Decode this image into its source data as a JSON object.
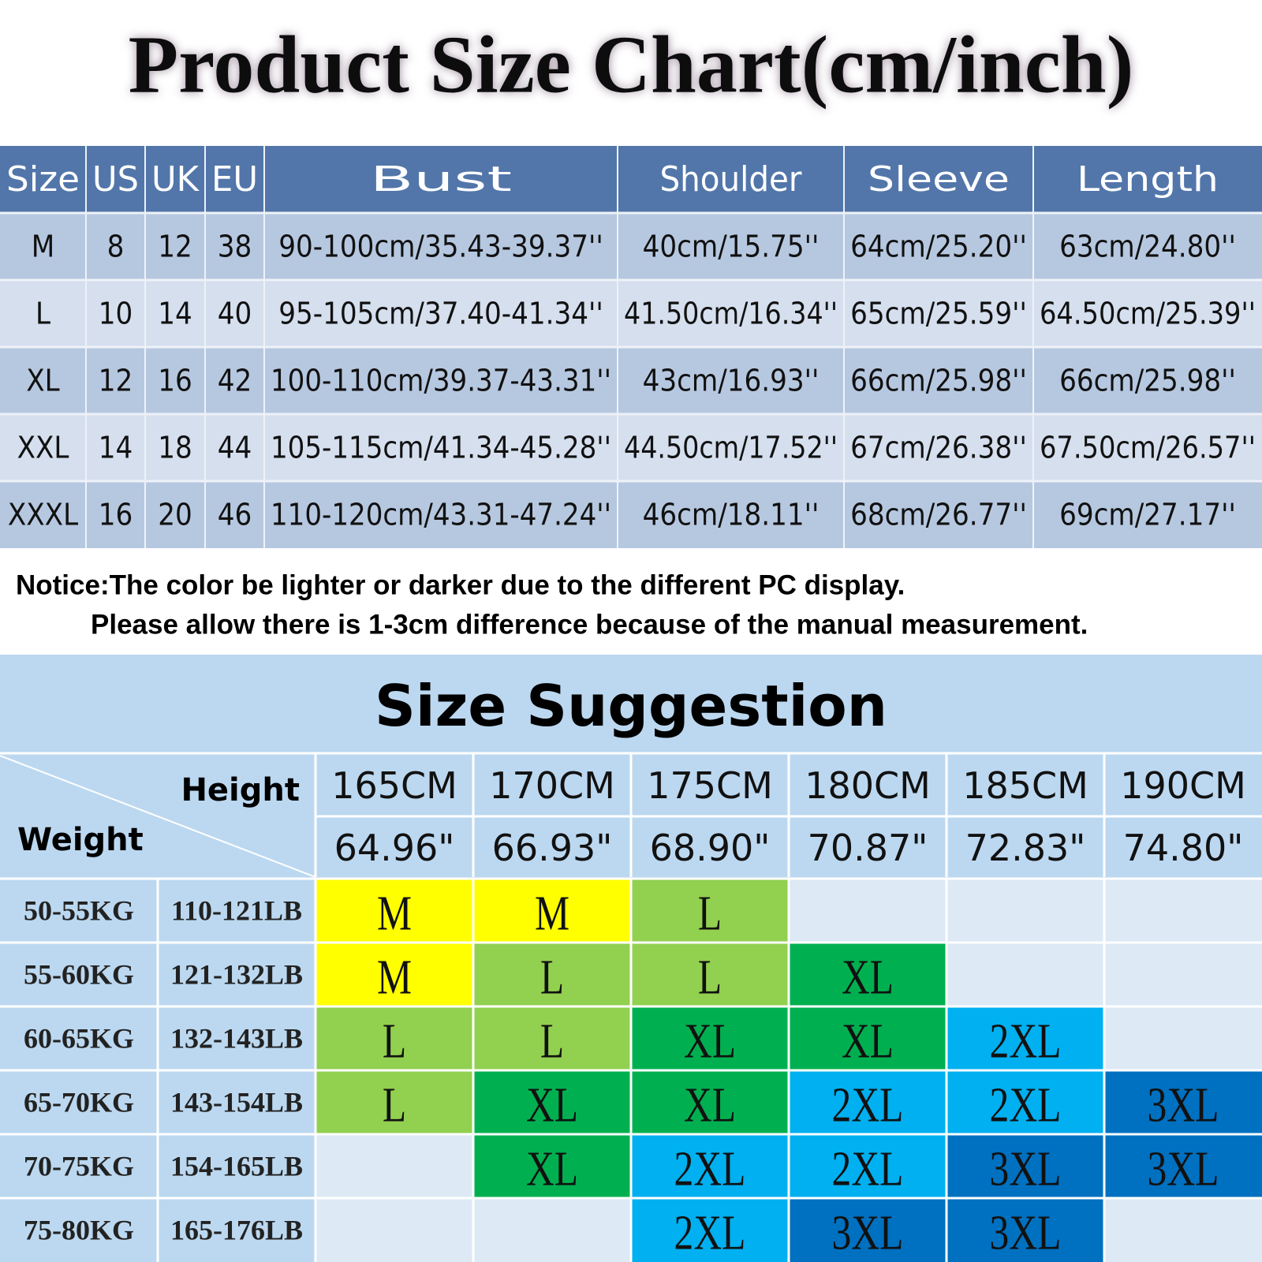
{
  "title": "Product Size Chart(cm/inch)",
  "size_table": {
    "headers": [
      "Size",
      "US",
      "UK",
      "EU",
      "Bust",
      "Shoulder",
      "Sleeve",
      "Length"
    ],
    "rows": [
      [
        "M",
        "8",
        "12",
        "38",
        "90-100cm/35.43-39.37''",
        "40cm/15.75''",
        "64cm/25.20''",
        "63cm/24.80''"
      ],
      [
        "L",
        "10",
        "14",
        "40",
        "95-105cm/37.40-41.34''",
        "41.50cm/16.34''",
        "65cm/25.59''",
        "64.50cm/25.39''"
      ],
      [
        "XL",
        "12",
        "16",
        "42",
        "100-110cm/39.37-43.31''",
        "43cm/16.93''",
        "66cm/25.98''",
        "66cm/25.98''"
      ],
      [
        "XXL",
        "14",
        "18",
        "44",
        "105-115cm/41.34-45.28''",
        "44.50cm/17.52''",
        "67cm/26.38''",
        "67.50cm/26.57''"
      ],
      [
        "XXXL",
        "16",
        "20",
        "46",
        "110-120cm/43.31-47.24''",
        "46cm/18.11''",
        "68cm/26.77''",
        "69cm/27.17''"
      ]
    ]
  },
  "notice": [
    "Notice:The color be lighter or darker due to the different PC display.",
    "Please allow there is 1-3cm difference because of the manual measurement."
  ],
  "suggestion": {
    "title": "Size Suggestion",
    "height_label": "Height",
    "weight_label": "Weight",
    "heights_cm": [
      "165CM",
      "170CM",
      "175CM",
      "180CM",
      "185CM",
      "190CM"
    ],
    "heights_in": [
      "64.96\"",
      "66.93\"",
      "68.90\"",
      "70.87\"",
      "72.83\"",
      "74.80\""
    ],
    "size_colors": {
      "M": "#ffff00",
      "L": "#92d050",
      "XL": "#00b050",
      "2XL": "#00b0f0",
      "3XL": "#0070c0"
    },
    "rows": [
      {
        "kg": "50-55KG",
        "lb": "110-121LB",
        "cells": [
          "M",
          "M",
          "L",
          null,
          null,
          null
        ]
      },
      {
        "kg": "55-60KG",
        "lb": "121-132LB",
        "cells": [
          "M",
          "L",
          "L",
          "XL",
          null,
          null
        ]
      },
      {
        "kg": "60-65KG",
        "lb": "132-143LB",
        "cells": [
          "L",
          "L",
          "XL",
          "XL",
          "2XL",
          null
        ]
      },
      {
        "kg": "65-70KG",
        "lb": "143-154LB",
        "cells": [
          "L",
          "XL",
          "XL",
          "2XL",
          "2XL",
          "3XL"
        ]
      },
      {
        "kg": "70-75KG",
        "lb": "154-165LB",
        "cells": [
          null,
          "XL",
          "2XL",
          "2XL",
          "3XL",
          "3XL"
        ]
      },
      {
        "kg": "75-80KG",
        "lb": "165-176LB",
        "cells": [
          null,
          null,
          "2XL",
          "3XL",
          "3XL",
          null
        ]
      }
    ]
  }
}
